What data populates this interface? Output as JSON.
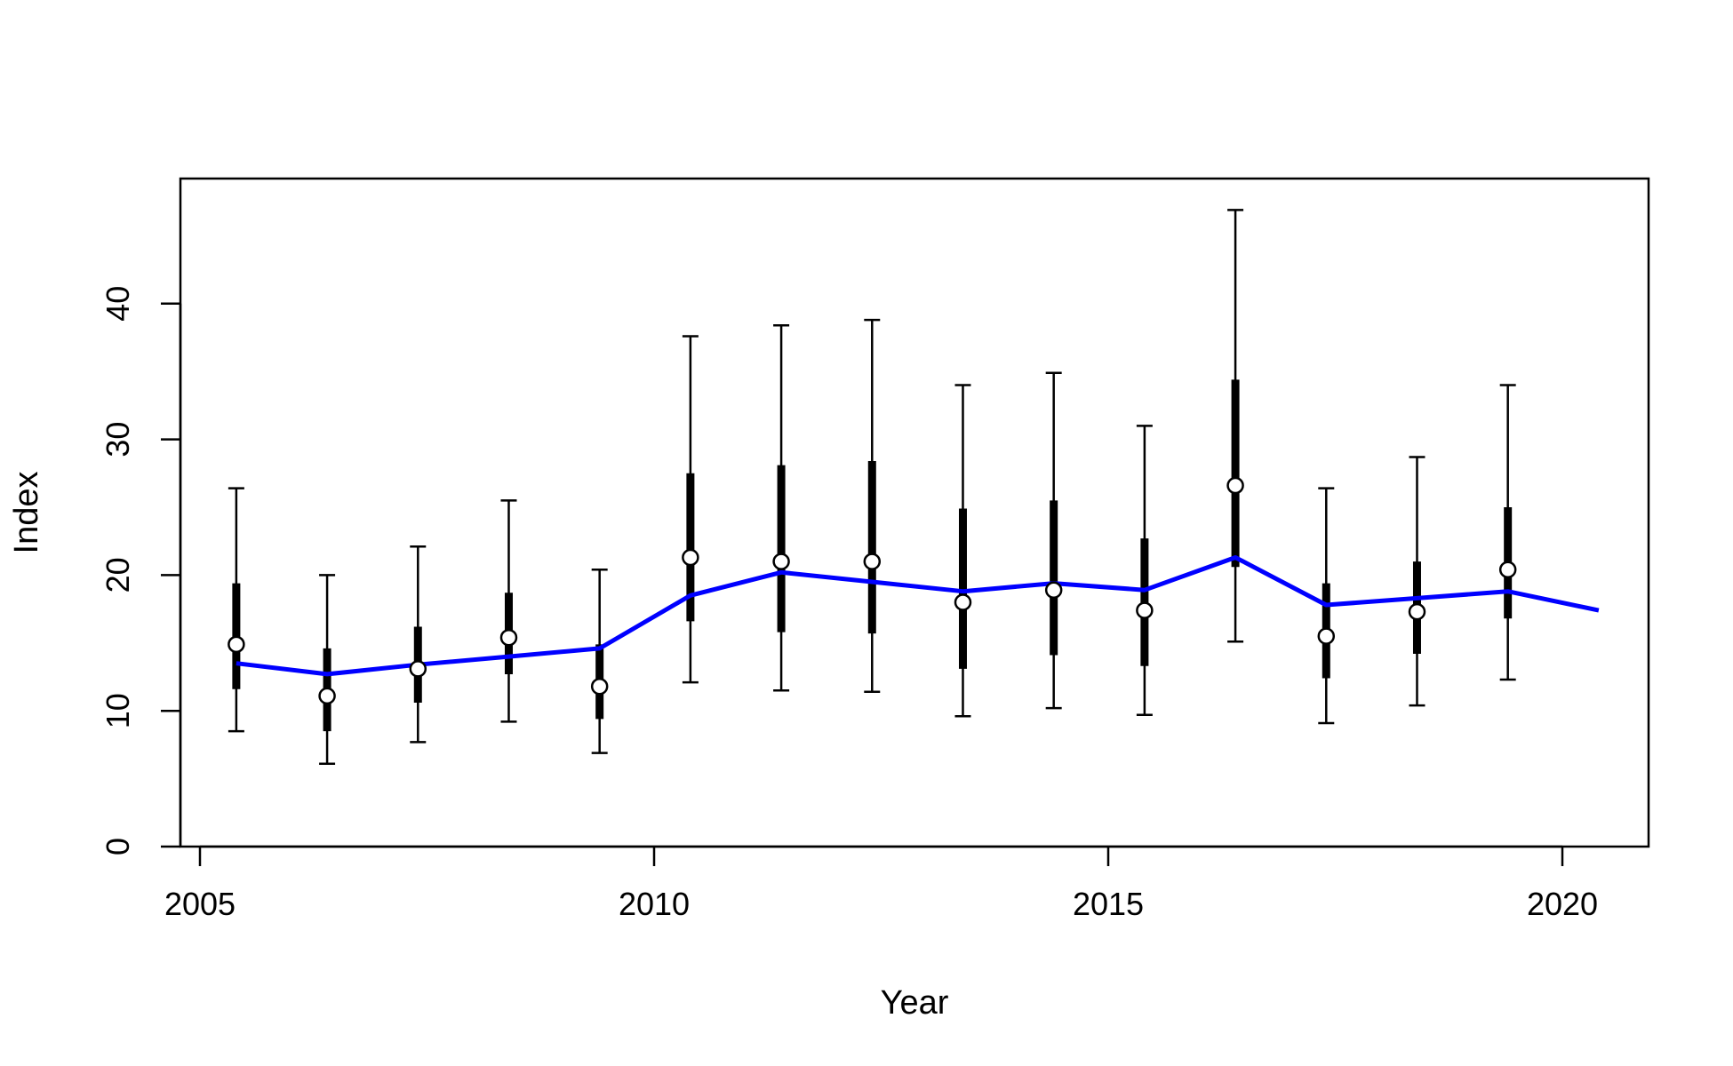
{
  "chart_data": {
    "type": "scatter",
    "title": "",
    "xlabel": "Year",
    "ylabel": "Index",
    "xlim": [
      2004.8,
      2021.0
    ],
    "ylim": [
      0,
      49
    ],
    "x_ticks": [
      2005,
      2010,
      2015,
      2020
    ],
    "y_ticks": [
      0,
      10,
      20,
      30,
      40
    ],
    "grid": false,
    "legend": "none",
    "colors": {
      "observed": "#000000",
      "fitted": "#0000ff"
    },
    "observed": [
      {
        "x": 2005.4,
        "y": 14.9,
        "inner_low": 11.6,
        "inner_high": 19.4,
        "outer_low": 8.5,
        "outer_high": 26.4
      },
      {
        "x": 2006.4,
        "y": 11.1,
        "inner_low": 8.5,
        "inner_high": 14.6,
        "outer_low": 6.1,
        "outer_high": 20.0
      },
      {
        "x": 2007.4,
        "y": 13.1,
        "inner_low": 10.6,
        "inner_high": 16.2,
        "outer_low": 7.7,
        "outer_high": 22.1
      },
      {
        "x": 2008.4,
        "y": 15.4,
        "inner_low": 12.7,
        "inner_high": 18.7,
        "outer_low": 9.2,
        "outer_high": 25.5
      },
      {
        "x": 2009.4,
        "y": 11.8,
        "inner_low": 9.4,
        "inner_high": 14.9,
        "outer_low": 6.9,
        "outer_high": 20.4
      },
      {
        "x": 2010.4,
        "y": 21.3,
        "inner_low": 16.6,
        "inner_high": 27.5,
        "outer_low": 12.1,
        "outer_high": 37.6
      },
      {
        "x": 2011.4,
        "y": 21.0,
        "inner_low": 15.8,
        "inner_high": 28.1,
        "outer_low": 11.5,
        "outer_high": 38.4
      },
      {
        "x": 2012.4,
        "y": 21.0,
        "inner_low": 15.7,
        "inner_high": 28.4,
        "outer_low": 11.4,
        "outer_high": 38.8
      },
      {
        "x": 2013.4,
        "y": 18.0,
        "inner_low": 13.1,
        "inner_high": 24.9,
        "outer_low": 9.6,
        "outer_high": 34.0
      },
      {
        "x": 2014.4,
        "y": 18.9,
        "inner_low": 14.1,
        "inner_high": 25.5,
        "outer_low": 10.2,
        "outer_high": 34.9
      },
      {
        "x": 2015.4,
        "y": 17.4,
        "inner_low": 13.3,
        "inner_high": 22.7,
        "outer_low": 9.7,
        "outer_high": 31.0
      },
      {
        "x": 2016.4,
        "y": 26.6,
        "inner_low": 20.6,
        "inner_high": 34.4,
        "outer_low": 15.1,
        "outer_high": 46.9
      },
      {
        "x": 2017.4,
        "y": 15.5,
        "inner_low": 12.4,
        "inner_high": 19.4,
        "outer_low": 9.1,
        "outer_high": 26.4
      },
      {
        "x": 2018.4,
        "y": 17.3,
        "inner_low": 14.2,
        "inner_high": 21.0,
        "outer_low": 10.4,
        "outer_high": 28.7
      },
      {
        "x": 2019.4,
        "y": 20.4,
        "inner_low": 16.8,
        "inner_high": 25.0,
        "outer_low": 12.3,
        "outer_high": 34.0
      }
    ],
    "fitted": [
      {
        "x": 2005.4,
        "y": 13.5
      },
      {
        "x": 2006.4,
        "y": 12.7
      },
      {
        "x": 2007.4,
        "y": 13.4
      },
      {
        "x": 2008.4,
        "y": 14.0
      },
      {
        "x": 2009.4,
        "y": 14.6
      },
      {
        "x": 2010.4,
        "y": 18.5
      },
      {
        "x": 2011.4,
        "y": 20.2
      },
      {
        "x": 2012.4,
        "y": 19.5
      },
      {
        "x": 2013.4,
        "y": 18.8
      },
      {
        "x": 2014.4,
        "y": 19.4
      },
      {
        "x": 2015.4,
        "y": 18.9
      },
      {
        "x": 2016.4,
        "y": 21.3
      },
      {
        "x": 2017.4,
        "y": 17.8
      },
      {
        "x": 2018.4,
        "y": 18.3
      },
      {
        "x": 2019.4,
        "y": 18.8
      },
      {
        "x": 2020.4,
        "y": 17.4
      }
    ]
  }
}
